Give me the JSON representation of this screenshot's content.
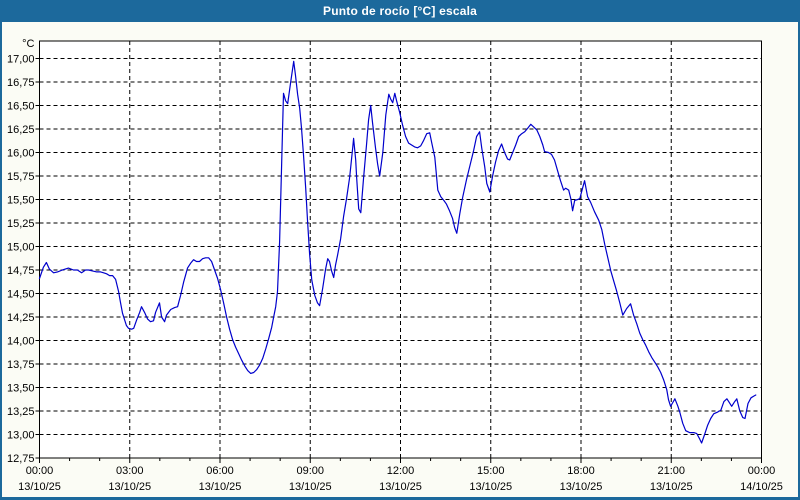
{
  "title_bar": {
    "title": "Punto de rocío [°C] escala"
  },
  "colors": {
    "frame_blue": "#1C699C",
    "line_blue": "#0000CC",
    "outer_bg": "#FBFCF5",
    "plot_bg": "#FFFFFF",
    "grid": "#000000",
    "text": "#000000"
  },
  "chart_data": {
    "type": "line",
    "title": "Punto de rocío [°C] escala",
    "ylabel": "°C",
    "xlabel": "",
    "grid": {
      "dashed": true,
      "color": "#000000"
    },
    "legend": "none",
    "y_axis": {
      "min": 12.75,
      "max": 17.0,
      "tick_step": 0.25,
      "decimal_separator": ",",
      "unit_label": "°C"
    },
    "x_axis": {
      "hours_span": 24,
      "minor_tick_every_hours": 1,
      "major_ticks": [
        {
          "hour": 0,
          "time": "00:00",
          "date": "13/10/25"
        },
        {
          "hour": 3,
          "time": "03:00",
          "date": "13/10/25"
        },
        {
          "hour": 6,
          "time": "06:00",
          "date": "13/10/25"
        },
        {
          "hour": 9,
          "time": "09:00",
          "date": "13/10/25"
        },
        {
          "hour": 12,
          "time": "12:00",
          "date": "13/10/25"
        },
        {
          "hour": 15,
          "time": "15:00",
          "date": "13/10/25"
        },
        {
          "hour": 18,
          "time": "18:00",
          "date": "13/10/25"
        },
        {
          "hour": 21,
          "time": "21:00",
          "date": "13/10/25"
        },
        {
          "hour": 24,
          "time": "00:00",
          "date": "14/10/25"
        }
      ]
    },
    "series": [
      {
        "name": "Punto de rocío [°C]",
        "color": "#0000CC",
        "points": [
          [
            0,
            14.66
          ],
          [
            0.13,
            14.78
          ],
          [
            0.23,
            14.83
          ],
          [
            0.33,
            14.76
          ],
          [
            0.47,
            14.72
          ],
          [
            0.6,
            14.73
          ],
          [
            0.76,
            14.75
          ],
          [
            0.96,
            14.77
          ],
          [
            1.13,
            14.75
          ],
          [
            1.26,
            14.75
          ],
          [
            1.4,
            14.72
          ],
          [
            1.53,
            14.75
          ],
          [
            1.63,
            14.75
          ],
          [
            1.76,
            14.74
          ],
          [
            1.9,
            14.73
          ],
          [
            2.03,
            14.73
          ],
          [
            2.13,
            14.72
          ],
          [
            2.23,
            14.71
          ],
          [
            2.33,
            14.69
          ],
          [
            2.43,
            14.69
          ],
          [
            2.53,
            14.65
          ],
          [
            2.63,
            14.52
          ],
          [
            2.69,
            14.41
          ],
          [
            2.76,
            14.29
          ],
          [
            2.83,
            14.22
          ],
          [
            2.89,
            14.16
          ],
          [
            2.96,
            14.13
          ],
          [
            3.06,
            14.12
          ],
          [
            3.13,
            14.13
          ],
          [
            3.23,
            14.22
          ],
          [
            3.33,
            14.3
          ],
          [
            3.39,
            14.36
          ],
          [
            3.49,
            14.3
          ],
          [
            3.59,
            14.23
          ],
          [
            3.69,
            14.2
          ],
          [
            3.79,
            14.21
          ],
          [
            3.86,
            14.3
          ],
          [
            3.99,
            14.4
          ],
          [
            4.06,
            14.25
          ],
          [
            4.16,
            14.2
          ],
          [
            4.22,
            14.27
          ],
          [
            4.36,
            14.33
          ],
          [
            4.49,
            14.35
          ],
          [
            4.59,
            14.36
          ],
          [
            4.69,
            14.48
          ],
          [
            4.79,
            14.62
          ],
          [
            4.86,
            14.7
          ],
          [
            4.92,
            14.77
          ],
          [
            5.02,
            14.82
          ],
          [
            5.12,
            14.86
          ],
          [
            5.22,
            14.84
          ],
          [
            5.32,
            14.84
          ],
          [
            5.42,
            14.87
          ],
          [
            5.52,
            14.88
          ],
          [
            5.62,
            14.88
          ],
          [
            5.72,
            14.84
          ],
          [
            5.82,
            14.75
          ],
          [
            5.92,
            14.66
          ],
          [
            6.02,
            14.54
          ],
          [
            6.12,
            14.4
          ],
          [
            6.22,
            14.25
          ],
          [
            6.32,
            14.12
          ],
          [
            6.42,
            14.01
          ],
          [
            6.52,
            13.93
          ],
          [
            6.62,
            13.86
          ],
          [
            6.72,
            13.79
          ],
          [
            6.82,
            13.73
          ],
          [
            6.92,
            13.68
          ],
          [
            7.02,
            13.65
          ],
          [
            7.12,
            13.66
          ],
          [
            7.22,
            13.69
          ],
          [
            7.32,
            13.74
          ],
          [
            7.42,
            13.81
          ],
          [
            7.52,
            13.91
          ],
          [
            7.62,
            14.02
          ],
          [
            7.72,
            14.14
          ],
          [
            7.78,
            14.24
          ],
          [
            7.85,
            14.36
          ],
          [
            7.91,
            14.52
          ],
          [
            7.98,
            15.05
          ],
          [
            8.05,
            15.9
          ],
          [
            8.11,
            16.63
          ],
          [
            8.18,
            16.55
          ],
          [
            8.25,
            16.52
          ],
          [
            8.35,
            16.75
          ],
          [
            8.45,
            16.97
          ],
          [
            8.51,
            16.82
          ],
          [
            8.58,
            16.62
          ],
          [
            8.65,
            16.47
          ],
          [
            8.71,
            16.26
          ],
          [
            8.78,
            15.96
          ],
          [
            8.85,
            15.62
          ],
          [
            8.91,
            15.28
          ],
          [
            8.98,
            14.92
          ],
          [
            9.05,
            14.64
          ],
          [
            9.15,
            14.48
          ],
          [
            9.24,
            14.4
          ],
          [
            9.31,
            14.37
          ],
          [
            9.41,
            14.55
          ],
          [
            9.51,
            14.76
          ],
          [
            9.58,
            14.87
          ],
          [
            9.64,
            14.84
          ],
          [
            9.71,
            14.74
          ],
          [
            9.78,
            14.67
          ],
          [
            9.84,
            14.8
          ],
          [
            9.91,
            14.91
          ],
          [
            10.01,
            15.08
          ],
          [
            10.11,
            15.32
          ],
          [
            10.21,
            15.52
          ],
          [
            10.31,
            15.74
          ],
          [
            10.41,
            16.05
          ],
          [
            10.44,
            16.15
          ],
          [
            10.51,
            15.92
          ],
          [
            10.54,
            15.74
          ],
          [
            10.61,
            15.4
          ],
          [
            10.68,
            15.36
          ],
          [
            10.77,
            15.72
          ],
          [
            10.87,
            16.08
          ],
          [
            10.94,
            16.35
          ],
          [
            11.01,
            16.5
          ],
          [
            11.07,
            16.32
          ],
          [
            11.17,
            16.05
          ],
          [
            11.24,
            15.88
          ],
          [
            11.31,
            15.75
          ],
          [
            11.41,
            16.0
          ],
          [
            11.51,
            16.4
          ],
          [
            11.61,
            16.62
          ],
          [
            11.67,
            16.57
          ],
          [
            11.74,
            16.53
          ],
          [
            11.81,
            16.63
          ],
          [
            11.87,
            16.55
          ],
          [
            11.97,
            16.43
          ],
          [
            12.07,
            16.29
          ],
          [
            12.17,
            16.17
          ],
          [
            12.27,
            16.1
          ],
          [
            12.37,
            16.08
          ],
          [
            12.47,
            16.06
          ],
          [
            12.57,
            16.05
          ],
          [
            12.67,
            16.07
          ],
          [
            12.77,
            16.13
          ],
          [
            12.87,
            16.2
          ],
          [
            12.97,
            16.21
          ],
          [
            13.04,
            16.1
          ],
          [
            13.14,
            15.95
          ],
          [
            13.24,
            15.6
          ],
          [
            13.34,
            15.53
          ],
          [
            13.44,
            15.49
          ],
          [
            13.53,
            15.45
          ],
          [
            13.63,
            15.38
          ],
          [
            13.73,
            15.3
          ],
          [
            13.8,
            15.2
          ],
          [
            13.87,
            15.14
          ],
          [
            13.97,
            15.35
          ],
          [
            14.07,
            15.53
          ],
          [
            14.2,
            15.72
          ],
          [
            14.3,
            15.85
          ],
          [
            14.43,
            16.02
          ],
          [
            14.53,
            16.17
          ],
          [
            14.63,
            16.22
          ],
          [
            14.7,
            16.05
          ],
          [
            14.8,
            15.85
          ],
          [
            14.87,
            15.67
          ],
          [
            14.97,
            15.58
          ],
          [
            15.06,
            15.75
          ],
          [
            15.16,
            15.9
          ],
          [
            15.26,
            16.02
          ],
          [
            15.36,
            16.09
          ],
          [
            15.46,
            16.0
          ],
          [
            15.56,
            15.93
          ],
          [
            15.63,
            15.92
          ],
          [
            15.73,
            16.0
          ],
          [
            15.83,
            16.08
          ],
          [
            15.93,
            16.17
          ],
          [
            16.03,
            16.2
          ],
          [
            16.13,
            16.22
          ],
          [
            16.23,
            16.26
          ],
          [
            16.33,
            16.3
          ],
          [
            16.43,
            16.27
          ],
          [
            16.53,
            16.24
          ],
          [
            16.63,
            16.17
          ],
          [
            16.73,
            16.08
          ],
          [
            16.79,
            16.01
          ],
          [
            16.92,
            16.0
          ],
          [
            17.02,
            15.98
          ],
          [
            17.12,
            15.92
          ],
          [
            17.22,
            15.81
          ],
          [
            17.32,
            15.7
          ],
          [
            17.42,
            15.6
          ],
          [
            17.49,
            15.62
          ],
          [
            17.59,
            15.6
          ],
          [
            17.66,
            15.51
          ],
          [
            17.72,
            15.38
          ],
          [
            17.79,
            15.49
          ],
          [
            17.89,
            15.5
          ],
          [
            17.96,
            15.51
          ],
          [
            18.06,
            15.63
          ],
          [
            18.12,
            15.7
          ],
          [
            18.22,
            15.53
          ],
          [
            18.32,
            15.47
          ],
          [
            18.45,
            15.37
          ],
          [
            18.59,
            15.28
          ],
          [
            18.69,
            15.18
          ],
          [
            18.79,
            15.02
          ],
          [
            18.89,
            14.88
          ],
          [
            18.99,
            14.74
          ],
          [
            19.09,
            14.63
          ],
          [
            19.19,
            14.52
          ],
          [
            19.29,
            14.4
          ],
          [
            19.39,
            14.27
          ],
          [
            19.52,
            14.34
          ],
          [
            19.65,
            14.39
          ],
          [
            19.75,
            14.27
          ],
          [
            19.85,
            14.18
          ],
          [
            19.95,
            14.08
          ],
          [
            20.05,
            14.01
          ],
          [
            20.15,
            13.95
          ],
          [
            20.25,
            13.88
          ],
          [
            20.35,
            13.82
          ],
          [
            20.45,
            13.77
          ],
          [
            20.55,
            13.72
          ],
          [
            20.65,
            13.66
          ],
          [
            20.75,
            13.58
          ],
          [
            20.85,
            13.48
          ],
          [
            20.91,
            13.37
          ],
          [
            20.98,
            13.3
          ],
          [
            21.05,
            13.34
          ],
          [
            21.12,
            13.38
          ],
          [
            21.22,
            13.3
          ],
          [
            21.28,
            13.24
          ],
          [
            21.38,
            13.12
          ],
          [
            21.48,
            13.04
          ],
          [
            21.61,
            13.02
          ],
          [
            21.75,
            13.02
          ],
          [
            21.85,
            13.01
          ],
          [
            21.95,
            12.95
          ],
          [
            22.01,
            12.91
          ],
          [
            22.11,
            13.0
          ],
          [
            22.21,
            13.1
          ],
          [
            22.31,
            13.17
          ],
          [
            22.41,
            13.22
          ],
          [
            22.55,
            13.24
          ],
          [
            22.65,
            13.26
          ],
          [
            22.75,
            13.35
          ],
          [
            22.85,
            13.38
          ],
          [
            22.91,
            13.35
          ],
          [
            23.01,
            13.3
          ],
          [
            23.11,
            13.35
          ],
          [
            23.18,
            13.38
          ],
          [
            23.28,
            13.25
          ],
          [
            23.38,
            13.18
          ],
          [
            23.45,
            13.17
          ],
          [
            23.55,
            13.33
          ],
          [
            23.65,
            13.39
          ],
          [
            23.75,
            13.41
          ],
          [
            23.81,
            13.42
          ]
        ]
      }
    ]
  }
}
